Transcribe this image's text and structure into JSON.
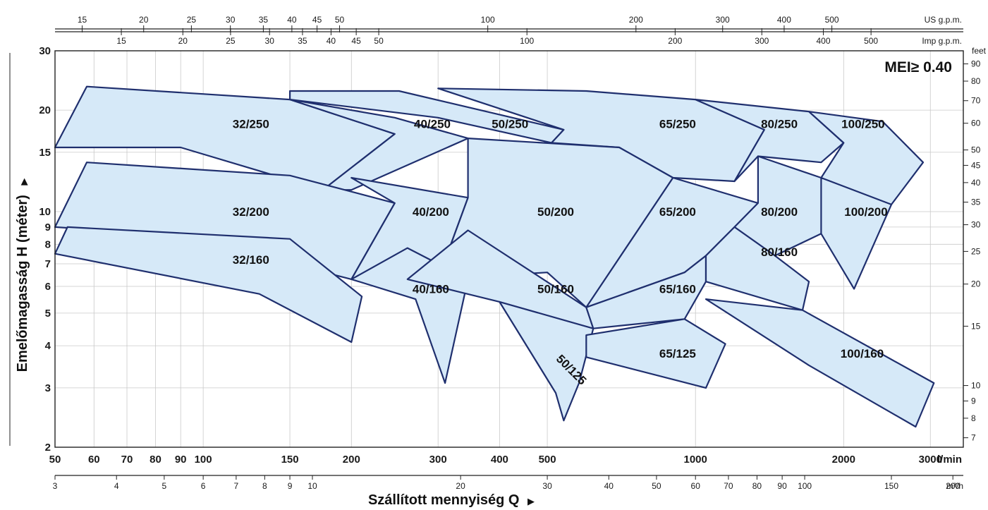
{
  "chart_data": {
    "type": "area",
    "annotation": "MEI≥ 0.40",
    "x_scale": "log",
    "y_scale": "log",
    "grid": true,
    "x": {
      "label": "Szállított mennyiség  Q",
      "unit": "l/min",
      "range": [
        50,
        3500
      ],
      "ticks": [
        50,
        60,
        70,
        80,
        90,
        100,
        150,
        200,
        300,
        400,
        500,
        1000,
        2000,
        3000
      ]
    },
    "y": {
      "label": "Emelőmagasság H  (méter)",
      "range": [
        2,
        30
      ],
      "ticks": [
        2,
        3,
        4,
        5,
        6,
        7,
        8,
        9,
        10,
        15,
        20,
        30
      ]
    },
    "secondary_axes": {
      "us_gpm": {
        "unit": "US g.p.m.",
        "ticks": [
          15,
          20,
          25,
          30,
          35,
          40,
          45,
          50,
          100,
          200,
          300,
          400,
          500
        ]
      },
      "imp_gpm": {
        "unit": "Imp g.p.m.",
        "ticks": [
          15,
          20,
          25,
          30,
          35,
          40,
          45,
          50,
          100,
          200,
          300,
          400,
          500
        ]
      },
      "m3h": {
        "unit": "m³/h",
        "ticks": [
          3,
          4,
          5,
          6,
          7,
          8,
          9,
          10,
          20,
          30,
          40,
          50,
          60,
          70,
          80,
          90,
          100,
          150,
          200
        ]
      },
      "feet": {
        "unit": "feet",
        "ticks": [
          7,
          8,
          9,
          10,
          15,
          20,
          25,
          30,
          35,
          40,
          45,
          50,
          60,
          70,
          80,
          90
        ]
      }
    },
    "series": [
      {
        "name": "32/250",
        "label_at": [
          125,
          18.2
        ],
        "polygon": [
          [
            50,
            15.5
          ],
          [
            58,
            23.5
          ],
          [
            150,
            21.5
          ],
          [
            245,
            17
          ],
          [
            175,
            11.6
          ],
          [
            90,
            15.5
          ],
          [
            50,
            15.5
          ]
        ]
      },
      {
        "name": "40/250",
        "label_at": [
          292,
          18.2
        ],
        "polygon": [
          [
            150,
            21.5
          ],
          [
            245,
            17
          ],
          [
            175,
            11.6
          ],
          [
            200,
            11.6
          ],
          [
            345,
            16.5
          ],
          [
            245,
            19
          ],
          [
            150,
            21.5
          ]
        ]
      },
      {
        "name": "50/250",
        "label_at": [
          420,
          18.2
        ],
        "polygon": [
          [
            150,
            22.8
          ],
          [
            250,
            22.8
          ],
          [
            540,
            17.5
          ],
          [
            510,
            16
          ],
          [
            300,
            19
          ],
          [
            150,
            21.5
          ]
        ]
      },
      {
        "name": "65/250",
        "label_at": [
          920,
          18.2
        ],
        "polygon": [
          [
            300,
            23.2
          ],
          [
            600,
            22.8
          ],
          [
            1000,
            21.5
          ],
          [
            1380,
            17.5
          ],
          [
            1200,
            12.3
          ],
          [
            900,
            12.6
          ],
          [
            700,
            15.5
          ],
          [
            510,
            16
          ],
          [
            540,
            17.5
          ],
          [
            300,
            23.2
          ]
        ]
      },
      {
        "name": "80/250",
        "label_at": [
          1480,
          18.2
        ],
        "polygon": [
          [
            1000,
            21.5
          ],
          [
            1380,
            17.5
          ],
          [
            1200,
            12.3
          ],
          [
            1340,
            14.6
          ],
          [
            1800,
            14
          ],
          [
            2000,
            16
          ],
          [
            1700,
            19.8
          ],
          [
            1000,
            21.5
          ]
        ]
      },
      {
        "name": "100/250",
        "label_at": [
          2190,
          18.2
        ],
        "polygon": [
          [
            1700,
            19.8
          ],
          [
            2400,
            18.5
          ],
          [
            2900,
            14
          ],
          [
            2500,
            10.5
          ],
          [
            2000,
            10.5
          ],
          [
            1800,
            12.6
          ],
          [
            2000,
            16
          ],
          [
            1700,
            19.8
          ]
        ]
      },
      {
        "name": "32/200",
        "label_at": [
          125,
          10
        ],
        "polygon": [
          [
            50,
            9
          ],
          [
            58,
            14
          ],
          [
            150,
            12.8
          ],
          [
            245,
            10.6
          ],
          [
            200,
            6.3
          ],
          [
            90,
            8.5
          ],
          [
            50,
            9
          ]
        ]
      },
      {
        "name": "40/200",
        "label_at": [
          290,
          10
        ],
        "polygon": [
          [
            200,
            12.6
          ],
          [
            345,
            11
          ],
          [
            300,
            6.3
          ],
          [
            260,
            6.3
          ],
          [
            200,
            6.3
          ],
          [
            245,
            10.6
          ],
          [
            200,
            12.6
          ]
        ]
      },
      {
        "name": "50/200",
        "label_at": [
          520,
          10
        ],
        "polygon": [
          [
            345,
            16.5
          ],
          [
            700,
            15.5
          ],
          [
            900,
            12.6
          ],
          [
            600,
            5.2
          ],
          [
            500,
            6.6
          ],
          [
            300,
            6.3
          ],
          [
            345,
            11
          ],
          [
            345,
            16.5
          ]
        ]
      },
      {
        "name": "65/200",
        "label_at": [
          920,
          10
        ],
        "polygon": [
          [
            900,
            12.6
          ],
          [
            1340,
            10.6
          ],
          [
            1200,
            9
          ],
          [
            1050,
            7.4
          ],
          [
            950,
            6.6
          ],
          [
            600,
            5.2
          ],
          [
            900,
            12.6
          ]
        ]
      },
      {
        "name": "80/200",
        "label_at": [
          1480,
          10
        ],
        "polygon": [
          [
            1340,
            14.6
          ],
          [
            1800,
            12.6
          ],
          [
            2000,
            10.5
          ],
          [
            1800,
            8.6
          ],
          [
            1450,
            7.4
          ],
          [
            1200,
            9
          ],
          [
            1340,
            10.6
          ],
          [
            1340,
            14.6
          ]
        ]
      },
      {
        "name": "100/200",
        "label_at": [
          2220,
          10
        ],
        "polygon": [
          [
            1800,
            12.6
          ],
          [
            2500,
            10.5
          ],
          [
            2100,
            5.9
          ],
          [
            1800,
            8.6
          ],
          [
            1800,
            12.6
          ]
        ]
      },
      {
        "name": "32/160",
        "label_at": [
          125,
          7.2
        ],
        "polygon": [
          [
            50,
            7.5
          ],
          [
            53,
            9
          ],
          [
            150,
            8.3
          ],
          [
            210,
            5.6
          ],
          [
            200,
            4.1
          ],
          [
            130,
            5.7
          ],
          [
            50,
            7.5
          ]
        ]
      },
      {
        "name": "40/160",
        "label_at": [
          290,
          5.9
        ],
        "polygon": [
          [
            200,
            6.3
          ],
          [
            260,
            7.8
          ],
          [
            345,
            6.3
          ],
          [
            310,
            3.1
          ],
          [
            270,
            5.5
          ],
          [
            200,
            6.3
          ]
        ]
      },
      {
        "name": "50/160",
        "label_at": [
          520,
          5.9
        ],
        "polygon": [
          [
            260,
            6.3
          ],
          [
            345,
            8.8
          ],
          [
            600,
            5.2
          ],
          [
            620,
            4.5
          ],
          [
            520,
            2.9
          ],
          [
            400,
            5.4
          ],
          [
            260,
            6.3
          ]
        ]
      },
      {
        "name": "65/160",
        "label_at": [
          920,
          5.9
        ],
        "polygon": [
          [
            600,
            5.2
          ],
          [
            950,
            6.6
          ],
          [
            1050,
            7.4
          ],
          [
            1050,
            6.2
          ],
          [
            950,
            4.8
          ],
          [
            620,
            4.5
          ],
          [
            600,
            5.2
          ]
        ]
      },
      {
        "name": "80/160",
        "label_at": [
          1480,
          7.6
        ],
        "polygon": [
          [
            1200,
            9
          ],
          [
            1450,
            7.4
          ],
          [
            1700,
            6.2
          ],
          [
            1650,
            5.1
          ],
          [
            1050,
            6.2
          ],
          [
            1050,
            7.4
          ],
          [
            1200,
            9
          ]
        ]
      },
      {
        "name": "50/125",
        "label_at": [
          560,
          3.4
        ],
        "polygon": [
          [
            400,
            5.4
          ],
          [
            620,
            4.5
          ],
          [
            580,
            3.1
          ],
          [
            540,
            2.4
          ],
          [
            520,
            2.9
          ],
          [
            400,
            5.4
          ]
        ]
      },
      {
        "name": "65/125",
        "label_at": [
          920,
          3.8
        ],
        "polygon": [
          [
            600,
            4.3
          ],
          [
            950,
            4.8
          ],
          [
            1150,
            4.05
          ],
          [
            1050,
            3.0
          ],
          [
            600,
            3.7
          ],
          [
            600,
            4.3
          ]
        ]
      },
      {
        "name": "100/160",
        "label_at": [
          2180,
          3.8
        ],
        "polygon": [
          [
            1050,
            5.5
          ],
          [
            1650,
            5.1
          ],
          [
            3050,
            3.1
          ],
          [
            2800,
            2.3
          ],
          [
            1700,
            3.5
          ],
          [
            1050,
            5.5
          ]
        ]
      }
    ]
  }
}
